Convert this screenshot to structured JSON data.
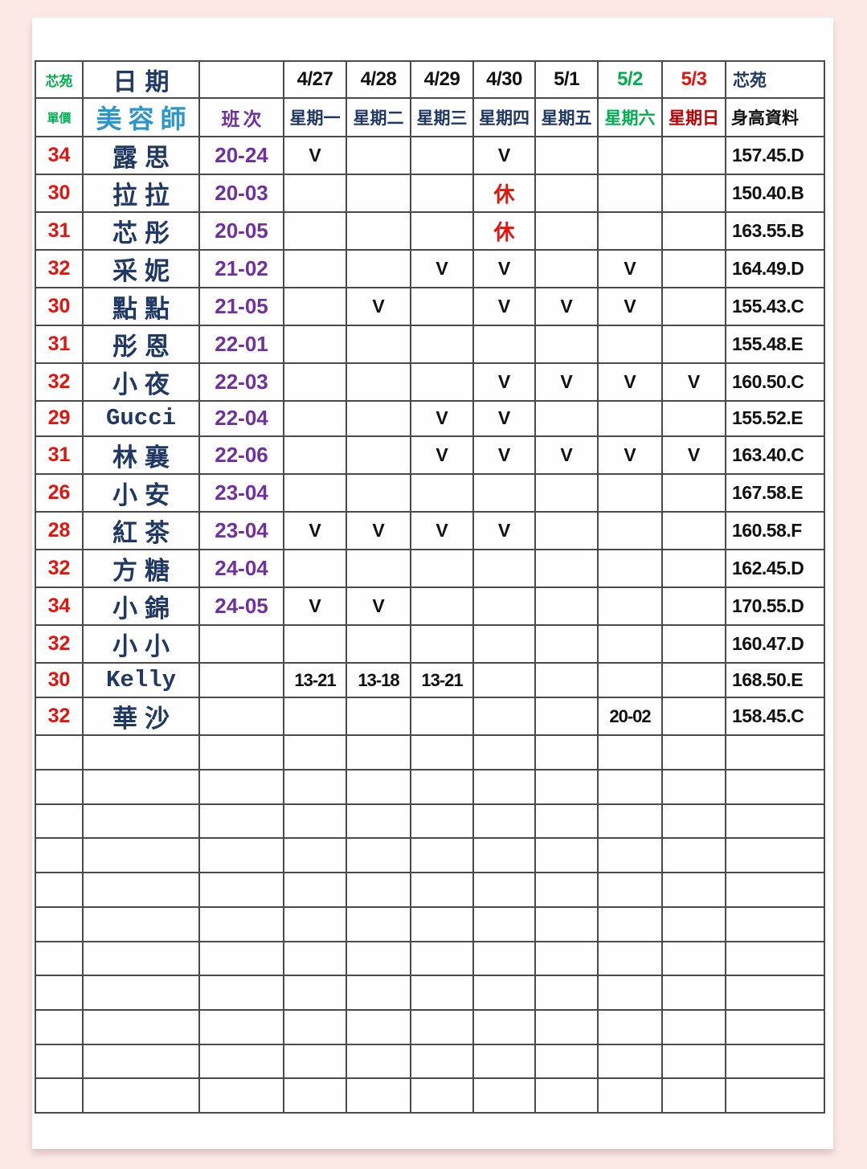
{
  "colors": {
    "page_background_pink": "#fce9e6",
    "green": "#00b050",
    "bright_red": "#e8120c",
    "dark_red": "#c00000",
    "navy": "#1f3864",
    "purple": "#7030a0",
    "cyan_blue": "#2b96cc",
    "black": "#111111"
  },
  "table": {
    "header_row1": {
      "corner": "芯苑",
      "date_label": "日期",
      "blank": "",
      "dates": [
        {
          "label": "4/27",
          "color": "#111111"
        },
        {
          "label": "4/28",
          "color": "#111111"
        },
        {
          "label": "4/29",
          "color": "#111111"
        },
        {
          "label": "4/30",
          "color": "#111111"
        },
        {
          "label": "5/1",
          "color": "#111111"
        },
        {
          "label": "5/2",
          "color": "#00b050"
        },
        {
          "label": "5/3",
          "color": "#e8120c"
        }
      ],
      "right": "芯苑"
    },
    "header_row2": {
      "price_label": "單價",
      "name_label": "美容師",
      "shift_label": "班次",
      "weekdays": [
        {
          "label": "星期一",
          "color": "#1f3864"
        },
        {
          "label": "星期二",
          "color": "#1f3864"
        },
        {
          "label": "星期三",
          "color": "#1f3864"
        },
        {
          "label": "星期四",
          "color": "#1f3864"
        },
        {
          "label": "星期五",
          "color": "#1f3864"
        },
        {
          "label": "星期六",
          "color": "#00b050"
        },
        {
          "label": "星期日",
          "color": "#c00000"
        }
      ],
      "right": "身高資料"
    },
    "rows": [
      {
        "price": "34",
        "name": "露思",
        "shift": "20-24",
        "days": [
          "V",
          "",
          "",
          "V",
          "",
          "",
          ""
        ],
        "height": "157.45.D"
      },
      {
        "price": "30",
        "name": "拉拉",
        "shift": "20-03",
        "days": [
          "",
          "",
          "",
          "休",
          "",
          "",
          ""
        ],
        "height": "150.40.B"
      },
      {
        "price": "31",
        "name": "芯彤",
        "shift": "20-05",
        "days": [
          "",
          "",
          "",
          "休",
          "",
          "",
          ""
        ],
        "height": "163.55.B"
      },
      {
        "price": "32",
        "name": "采妮",
        "shift": "21-02",
        "days": [
          "",
          "",
          "V",
          "V",
          "",
          "V",
          ""
        ],
        "height": "164.49.D"
      },
      {
        "price": "30",
        "name": "點點",
        "shift": "21-05",
        "days": [
          "",
          "V",
          "",
          "V",
          "V",
          "V",
          ""
        ],
        "height": "155.43.C"
      },
      {
        "price": "31",
        "name": "彤恩",
        "shift": "22-01",
        "days": [
          "",
          "",
          "",
          "",
          "",
          "",
          ""
        ],
        "height": "155.48.E"
      },
      {
        "price": "32",
        "name": "小夜",
        "shift": "22-03",
        "days": [
          "",
          "",
          "",
          "V",
          "V",
          "V",
          "V"
        ],
        "height": "160.50.C"
      },
      {
        "price": "29",
        "name": "Gucci",
        "shift": "22-04",
        "days": [
          "",
          "",
          "V",
          "V",
          "",
          "",
          ""
        ],
        "height": "155.52.E"
      },
      {
        "price": "31",
        "name": "林襄",
        "shift": "22-06",
        "days": [
          "",
          "",
          "V",
          "V",
          "V",
          "V",
          "V"
        ],
        "height": "163.40.C"
      },
      {
        "price": "26",
        "name": "小安",
        "shift": "23-04",
        "days": [
          "",
          "",
          "",
          "",
          "",
          "",
          ""
        ],
        "height": "167.58.E"
      },
      {
        "price": "28",
        "name": "紅茶",
        "shift": "23-04",
        "days": [
          "V",
          "V",
          "V",
          "V",
          "",
          "",
          ""
        ],
        "height": "160.58.F"
      },
      {
        "price": "32",
        "name": "方糖",
        "shift": "24-04",
        "days": [
          "",
          "",
          "",
          "",
          "",
          "",
          ""
        ],
        "height": "162.45.D"
      },
      {
        "price": "34",
        "name": "小錦",
        "shift": "24-05",
        "days": [
          "V",
          "V",
          "",
          "",
          "",
          "",
          ""
        ],
        "height": "170.55.D"
      },
      {
        "price": "32",
        "name": "小小",
        "shift": "",
        "days": [
          "",
          "",
          "",
          "",
          "",
          "",
          ""
        ],
        "height": "160.47.D"
      },
      {
        "price": "30",
        "name": "Kelly",
        "shift": "",
        "days": [
          "13-21",
          "13-18",
          "13-21",
          "",
          "",
          "",
          ""
        ],
        "height": "168.50.E"
      },
      {
        "price": "32",
        "name": "華沙",
        "shift": "",
        "days": [
          "",
          "",
          "",
          "",
          "",
          "20-02",
          ""
        ],
        "height": "158.45.C"
      }
    ],
    "empty_row_count": 11
  }
}
